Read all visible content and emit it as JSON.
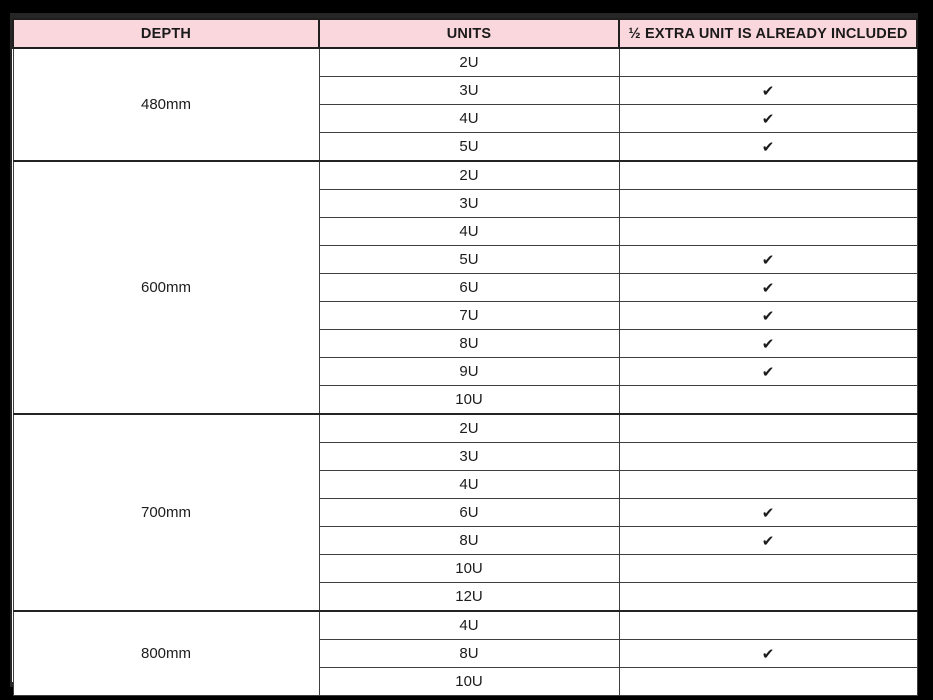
{
  "page": {
    "background": "#000000"
  },
  "table": {
    "header": {
      "background": "#f9d7dc",
      "border_color": "#1f1f1f",
      "columns": [
        "DEPTH",
        "UNITS",
        "½ EXTRA UNIT IS ALREADY INCLUDED"
      ]
    },
    "check_glyph": "✔",
    "grid_color": "#3e3e3e",
    "groups": [
      {
        "depth": "480mm",
        "rows": [
          {
            "units": "2U",
            "check": ""
          },
          {
            "units": "3U",
            "check": "✔"
          },
          {
            "units": "4U",
            "check": "✔"
          },
          {
            "units": "5U",
            "check": "✔"
          }
        ]
      },
      {
        "depth": "600mm",
        "rows": [
          {
            "units": "2U",
            "check": ""
          },
          {
            "units": "3U",
            "check": ""
          },
          {
            "units": "4U",
            "check": ""
          },
          {
            "units": "5U",
            "check": "✔"
          },
          {
            "units": "6U",
            "check": "✔"
          },
          {
            "units": "7U",
            "check": "✔"
          },
          {
            "units": "8U",
            "check": "✔"
          },
          {
            "units": "9U",
            "check": "✔"
          },
          {
            "units": "10U",
            "check": ""
          }
        ]
      },
      {
        "depth": "700mm",
        "rows": [
          {
            "units": "2U",
            "check": ""
          },
          {
            "units": "3U",
            "check": ""
          },
          {
            "units": "4U",
            "check": ""
          },
          {
            "units": "6U",
            "check": "✔"
          },
          {
            "units": "8U",
            "check": "✔"
          },
          {
            "units": "10U",
            "check": ""
          },
          {
            "units": "12U",
            "check": ""
          }
        ]
      },
      {
        "depth": "800mm",
        "rows": [
          {
            "units": "4U",
            "check": ""
          },
          {
            "units": "8U",
            "check": "✔"
          },
          {
            "units": "10U",
            "check": ""
          }
        ]
      }
    ]
  }
}
